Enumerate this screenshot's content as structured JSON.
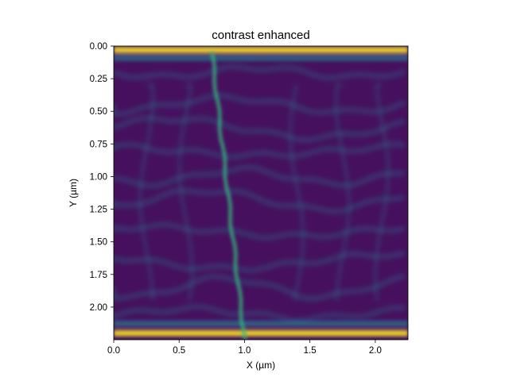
{
  "chart_data": {
    "type": "heatmap",
    "title": "contrast enhanced",
    "xlabel": "X (µm)",
    "ylabel": "Y (µm)",
    "xlim": [
      0,
      2.25
    ],
    "ylim": [
      2.25,
      0
    ],
    "y_inverted": true,
    "colormap": "viridis",
    "grid": false,
    "xticks": [
      {
        "value": 0.0,
        "label": "0.0"
      },
      {
        "value": 0.5,
        "label": "0.5"
      },
      {
        "value": 1.0,
        "label": "1.0"
      },
      {
        "value": 1.5,
        "label": "1.5"
      },
      {
        "value": 2.0,
        "label": "2.0"
      }
    ],
    "yticks": [
      {
        "value": 0.0,
        "label": "0.00"
      },
      {
        "value": 0.25,
        "label": "0.25"
      },
      {
        "value": 0.5,
        "label": "0.50"
      },
      {
        "value": 0.75,
        "label": "0.75"
      },
      {
        "value": 1.0,
        "label": "1.00"
      },
      {
        "value": 1.25,
        "label": "1.25"
      },
      {
        "value": 1.5,
        "label": "1.50"
      },
      {
        "value": 1.75,
        "label": "1.75"
      },
      {
        "value": 2.0,
        "label": "2.00"
      }
    ],
    "features": {
      "bright_bands_y": [
        0.03,
        2.2
      ],
      "diagonal_line": [
        [
          0.75,
          0.05
        ],
        [
          1.0,
          2.25
        ]
      ],
      "wavy_stripe_rows_y": [
        0.2,
        0.45,
        0.63,
        0.8,
        1.0,
        1.18,
        1.42,
        1.65,
        1.85,
        2.05
      ]
    }
  },
  "colors": {
    "background": "#440154",
    "low": "#46105f",
    "mid": "#2a788e",
    "high": "#fde725"
  }
}
